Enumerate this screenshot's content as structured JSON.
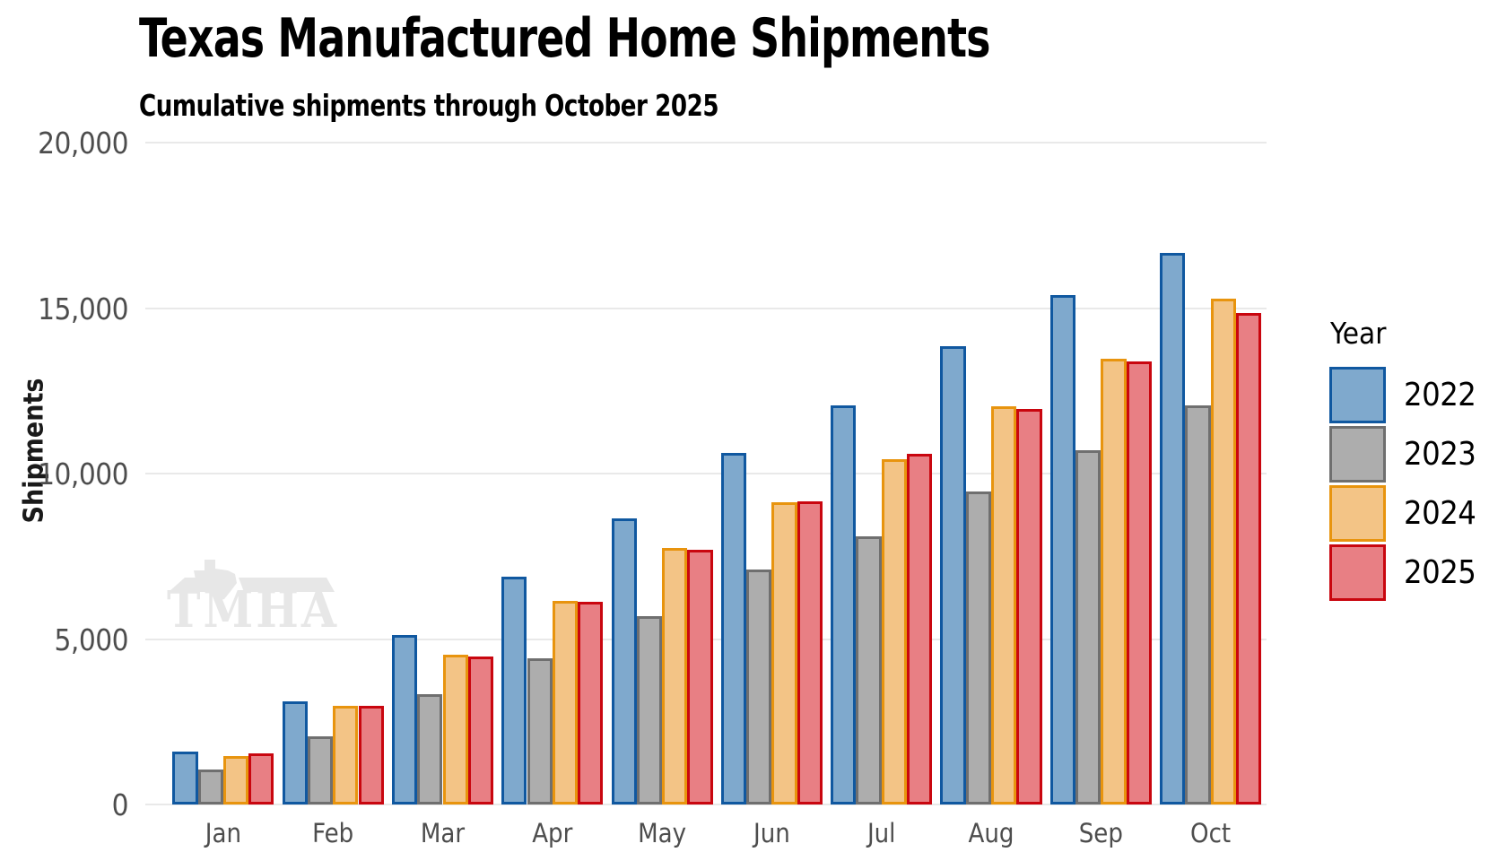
{
  "title": "Texas Manufactured Home Shipments",
  "subtitle": "Cumulative shipments through October 2025",
  "watermark_text": "TMHA",
  "chart_data": {
    "type": "bar",
    "title": "Texas Manufactured Home Shipments",
    "subtitle": "Cumulative shipments through October 2025",
    "xlabel": "",
    "ylabel": "Shipments",
    "ylim": [
      0,
      20000
    ],
    "yticks": [
      0,
      5000,
      10000,
      15000,
      20000
    ],
    "ytick_labels": [
      "0",
      "5,000",
      "10,000",
      "15,000",
      "20,000"
    ],
    "grid": true,
    "legend_title": "Year",
    "legend_position": "right",
    "categories": [
      "Jan",
      "Feb",
      "Mar",
      "Apr",
      "May",
      "Jun",
      "Jul",
      "Aug",
      "Sep",
      "Oct"
    ],
    "series": [
      {
        "name": "2022",
        "fill": "#7FA9CD",
        "border": "#1058A0",
        "values": [
          1590,
          3130,
          5110,
          6880,
          8640,
          10620,
          12060,
          13840,
          15390,
          16680
        ]
      },
      {
        "name": "2023",
        "fill": "#ADADAD",
        "border": "#6F6F6F",
        "values": [
          1050,
          2070,
          3330,
          4410,
          5700,
          7100,
          8100,
          9470,
          10710,
          12070
        ]
      },
      {
        "name": "2024",
        "fill": "#F3C486",
        "border": "#E8940E",
        "values": [
          1470,
          2990,
          4530,
          6150,
          7740,
          9130,
          10440,
          12030,
          13470,
          15280
        ]
      },
      {
        "name": "2025",
        "fill": "#E87F84",
        "border": "#C9060F",
        "values": [
          1550,
          2980,
          4470,
          6120,
          7690,
          9170,
          10590,
          11950,
          13380,
          14850
        ]
      }
    ],
    "colors": {
      "gridline": "#E9E9E9",
      "axis_text": "#4D4D4D",
      "title_text": "#000000",
      "watermark": "#E7E7E7"
    }
  }
}
